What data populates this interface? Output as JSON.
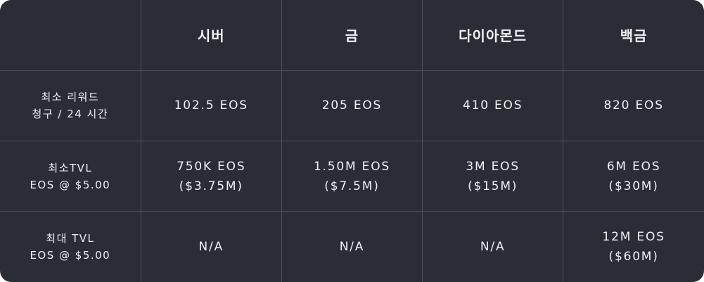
{
  "table": {
    "tiers": [
      "시버",
      "금",
      "다이아몬드",
      "백금"
    ],
    "rows": [
      {
        "label": [
          "최소 리워드",
          "청구 / 24 시간"
        ],
        "cells": [
          [
            "102.5 EOS"
          ],
          [
            "205 EOS"
          ],
          [
            "410 EOS"
          ],
          [
            "820 EOS"
          ]
        ]
      },
      {
        "label": [
          "최소TVL",
          "EOS @ $5.00"
        ],
        "cells": [
          [
            "750K EOS",
            "($3.75M)"
          ],
          [
            "1.50M EOS",
            "($7.5M)"
          ],
          [
            "3M EOS",
            "($15M)"
          ],
          [
            "6M EOS",
            "($30M)"
          ]
        ]
      },
      {
        "label": [
          "최대 TVL",
          "EOS @ $5.00"
        ],
        "cells": [
          [
            "N/A"
          ],
          [
            "N/A"
          ],
          [
            "N/A"
          ],
          [
            "12M EOS",
            "($60M)"
          ]
        ]
      }
    ]
  },
  "colors": {
    "background": "#2a2d35",
    "grid": "#4d5059",
    "text": "#f2f2f4"
  }
}
